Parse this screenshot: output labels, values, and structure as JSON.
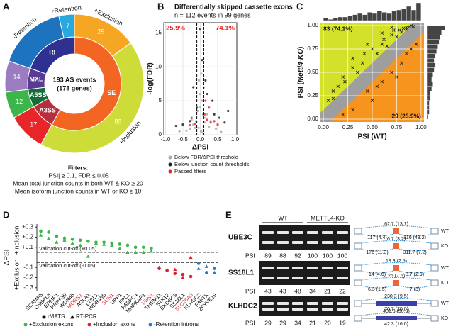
{
  "chart_data": [
    {
      "type": "sunburst",
      "panel_label": "A",
      "center_text": [
        "193 AS events",
        "(178 genes)"
      ],
      "inner": {
        "categories": [
          "SE",
          "A3SS",
          "A5SS",
          "MXE",
          "RI"
        ],
        "values": [
          112,
          17,
          12,
          14,
          38
        ],
        "colors": [
          "#f26522",
          "#b5303c",
          "#176b38",
          "#5a3b94",
          "#2e3192"
        ]
      },
      "outer": {
        "categories": [
          "+Exclusion",
          "+Inclusion",
          null,
          null,
          null,
          "-Retention",
          "+Retention"
        ],
        "values": [
          29,
          83,
          17,
          12,
          14,
          31,
          7
        ],
        "value_labels": [
          "29",
          "83",
          "17",
          "12",
          "14",
          null,
          "7"
        ],
        "colors": [
          "#f5a623",
          "#cddc39",
          "#e8262a",
          "#3cb54a",
          "#9b7cc0",
          "#1e73be",
          "#29a8e0"
        ]
      },
      "footnote": [
        "Filters:",
        "|PSI| ≥ 0.1, FDR ≤ 0.05",
        "Mean total junction counts in both WT & KO ≥ 20",
        "Mean isoform junction counts in WT or KO ≥ 10"
      ]
    },
    {
      "type": "volcano",
      "panel_label": "B",
      "title": "Differentially skipped cassette exons",
      "subtitle": "n = 112 events in 99 genes",
      "x_label": "ΔPSI",
      "y_label": "-log(FDR)",
      "xlim": [
        -1.05,
        1.05
      ],
      "ylim": [
        0,
        16.5
      ],
      "xticks": [
        {
          "value": -1,
          "label": "-1.0"
        },
        -0.5,
        {
          "value": 0,
          "label": "0.0"
        },
        0.5,
        {
          "value": 1,
          "label": "1.0"
        }
      ],
      "yticks": [
        0,
        5,
        10,
        15
      ],
      "grid": true,
      "vlines": [
        -0.1,
        0.1
      ],
      "hline": 1.3,
      "left_label": "25.9%",
      "right_label": "74.1%",
      "series": [
        {
          "name": "Below FDR/ΔPSI threshold",
          "color": "#aaaaaa",
          "x": [
            -0.05,
            0.02,
            -0.12,
            0.08,
            -0.2,
            0.15,
            -0.3,
            0.25,
            0.0,
            -0.02,
            0.05,
            -0.08,
            0.1,
            -0.15,
            0.3,
            -0.4,
            0.45,
            0.6,
            -0.6,
            0.03,
            -0.04,
            0.07,
            0.2,
            -0.25,
            0.12
          ],
          "values": [
            1,
            0.5,
            2,
            3,
            1.5,
            2.5,
            0.8,
            1.2,
            4,
            6,
            5,
            3.5,
            7,
            1,
            2,
            0.6,
            0.9,
            0.4,
            0.5,
            9,
            8,
            0.3,
            3,
            2.2,
            1.8
          ]
        },
        {
          "name": "Below junction count thresholds",
          "color": "#222222",
          "x": [
            -0.3,
            0.4,
            -0.5,
            0.2,
            0.55,
            -0.1,
            0.35,
            0.7,
            -0.7,
            0.15,
            -0.2,
            0.8,
            0.05,
            -0.02
          ],
          "values": [
            2,
            3,
            1.5,
            6,
            2.5,
            4,
            5,
            1.8,
            1.3,
            8,
            7,
            3.5,
            11,
            15.5
          ]
        },
        {
          "name": "Passed filters",
          "color": "#e8262a",
          "x": [
            -0.25,
            0.3,
            0.12,
            0.2,
            -0.15,
            0.5,
            0.15,
            -0.3,
            0.25,
            0.4
          ],
          "values": [
            2.5,
            1.8,
            3,
            2.2,
            1.6,
            1.5,
            5,
            1.4,
            4,
            2
          ]
        }
      ]
    },
    {
      "type": "scatter",
      "panel_label": "C",
      "x_label": "PSI (WT)",
      "y_label": [
        "PSI (",
        "Mettl4-KO",
        ")"
      ],
      "xlim": [
        -0.03,
        1.03
      ],
      "ylim": [
        -0.03,
        1.03
      ],
      "xticks": [
        {
          "value": 0,
          "label": "0.00"
        },
        0.25,
        {
          "value": 0.5,
          "label": "0.50"
        },
        0.75,
        {
          "value": 1,
          "label": "1.00"
        }
      ],
      "yticks": [
        {
          "value": 0,
          "label": "0.00"
        },
        0.25,
        {
          "value": 0.5,
          "label": "0.50"
        },
        0.75,
        {
          "value": 1,
          "label": "1.00"
        }
      ],
      "band": 0.1,
      "colors": {
        "above": "#d4e12a",
        "below": "#f7941d",
        "band": "#9e9e9e",
        "points": "#222222",
        "hist": "#444444"
      },
      "above_label": "83 (74.1%)",
      "below_label": "29 (25.9%)",
      "x": [
        0.05,
        0.1,
        0.15,
        0.2,
        0.22,
        0.3,
        0.35,
        0.4,
        0.42,
        0.5,
        0.55,
        0.6,
        0.62,
        0.65,
        0.7,
        0.72,
        0.75,
        0.78,
        0.8,
        0.82,
        0.85,
        0.88,
        0.9,
        0.1,
        0.3,
        0.45,
        0.6,
        0.7,
        0.85,
        0.92,
        0.2,
        0.3,
        0.45,
        0.5,
        0.55,
        0.6,
        0.7,
        0.75,
        0.8,
        0.85,
        0.9,
        0.95
      ],
      "values": [
        0.2,
        0.3,
        0.35,
        0.45,
        0.4,
        0.55,
        0.5,
        0.6,
        0.7,
        0.75,
        0.7,
        0.8,
        0.85,
        0.78,
        0.9,
        0.95,
        0.88,
        0.95,
        0.93,
        0.97,
        0.98,
        0.99,
        1.0,
        0.22,
        0.65,
        0.8,
        0.92,
        0.98,
        0.96,
        0.99,
        0.05,
        0.1,
        0.3,
        0.2,
        0.35,
        0.4,
        0.5,
        0.45,
        0.6,
        0.7,
        0.75,
        0.8
      ],
      "x_hist": {
        "bins": [
          0,
          0.05,
          0.1,
          0.15,
          0.2,
          0.25,
          0.3,
          0.35,
          0.4,
          0.45,
          0.5,
          0.55,
          0.6,
          0.65,
          0.7,
          0.75,
          0.8,
          0.85,
          0.9,
          0.95,
          1
        ],
        "counts": [
          2,
          1,
          2,
          3,
          3,
          4,
          5,
          6,
          5,
          7,
          6,
          8,
          7,
          6,
          8,
          9,
          10,
          12,
          9,
          15
        ]
      },
      "y_hist": {
        "bins": [
          0,
          0.05,
          0.1,
          0.15,
          0.2,
          0.25,
          0.3,
          0.35,
          0.4,
          0.45,
          0.5,
          0.55,
          0.6,
          0.65,
          0.7,
          0.75,
          0.8,
          0.85,
          0.9,
          0.95,
          1
        ],
        "counts": [
          1,
          2,
          2,
          2,
          3,
          3,
          4,
          5,
          4,
          5,
          6,
          7,
          6,
          7,
          8,
          9,
          10,
          11,
          12,
          15
        ]
      }
    },
    {
      "type": "dot",
      "panel_label": "D",
      "y_label": "ΔPSI",
      "direction_labels": [
        "+Inclusion",
        "+Exclusion"
      ],
      "ylim": [
        -0.33,
        0.33
      ],
      "yticks": [
        {
          "value": 0.3,
          "label": "+0.3"
        },
        {
          "value": 0.2,
          "label": "+0.2"
        },
        {
          "value": 0.1,
          "label": "+0.1"
        },
        -0.1,
        -0.2,
        -0.3
      ],
      "cutoffs": [
        {
          "value": 0.05,
          "label": "Validation cut-off (+0.05)"
        },
        {
          "value": -0.05,
          "label": "Validation cut-off (-0.05)"
        }
      ],
      "method_names": [
        "rMATS",
        "RT-PCR"
      ],
      "categories": [
        "SCAMP5",
        "OSBPL6",
        "ERMP1",
        "PRPF39",
        "WDR45",
        "MORN1",
        "ACLA1",
        "LTBL1",
        "WDR45B",
        "SUN1",
        "UPF1",
        "FPL1",
        "FABPC4",
        "MAPKAP1",
        "UBN1",
        "TMEM11",
        "STK12",
        "EXOSC9",
        "SS18L1",
        "SLC25A3",
        "KLHDC2",
        "FASTK",
        "ZFYVE19"
      ],
      "label_colors": [
        "#000000",
        "#000000",
        "#000000",
        "#000000",
        "#000000",
        "#e8262a",
        "#000000",
        "#000000",
        "#000000",
        "#e8262a",
        "#000000",
        "#000000",
        "#000000",
        "#000000",
        "#e8262a",
        "#000000",
        "#000000",
        "#000000",
        "#000000",
        "#e8262a",
        "#000000",
        "#000000",
        "#000000"
      ],
      "series": [
        {
          "name": "+Exclusion exons",
          "color": "#3cb54a",
          "values": [
            0.26,
            0.25,
            0.21,
            0.19,
            0.18,
            0.17,
            0.16,
            0.15,
            0.15,
            0.14,
            0.13,
            0.12,
            0.1,
            0.1,
            0.09,
            null,
            null,
            null,
            null,
            null,
            null,
            null,
            null
          ],
          "rtpcr": [
            0.22,
            0.19,
            0.15,
            0.17,
            0.14,
            0.12,
            0.01,
            0.14,
            0.13,
            0.12,
            0.09,
            0.05,
            0.05,
            0.05,
            0.06,
            null,
            null,
            null,
            null,
            null,
            null,
            null,
            null
          ]
        },
        {
          "name": "+Inclusion exons",
          "color": "#d7262f",
          "values": [
            null,
            null,
            null,
            null,
            null,
            null,
            null,
            null,
            null,
            null,
            null,
            null,
            null,
            null,
            null,
            -0.11,
            -0.13,
            -0.16,
            -0.17,
            -0.19,
            null,
            null,
            null
          ],
          "rtpcr": [
            null,
            null,
            null,
            null,
            null,
            null,
            null,
            null,
            null,
            null,
            null,
            null,
            null,
            null,
            null,
            -0.1,
            -0.12,
            -0.12,
            -0.2,
            0.0,
            null,
            null,
            null
          ]
        },
        {
          "name": "-Retention introns",
          "color": "#2a7bbf",
          "values": [
            null,
            null,
            null,
            null,
            null,
            null,
            null,
            null,
            null,
            null,
            null,
            null,
            null,
            null,
            null,
            null,
            null,
            null,
            null,
            null,
            -0.06,
            -0.15,
            -0.11
          ],
          "rtpcr": [
            null,
            null,
            null,
            null,
            null,
            null,
            null,
            null,
            null,
            null,
            null,
            null,
            null,
            null,
            null,
            null,
            null,
            null,
            null,
            null,
            -0.11,
            -0.09,
            -0.15
          ]
        }
      ]
    }
  ],
  "gel_figure": {
    "panel_label": "E",
    "groups": [
      "WT",
      "METTL4-KO"
    ],
    "psi_label": "PSI",
    "genes": [
      {
        "name": "UBE3C",
        "psi": [
          89,
          88,
          92,
          100,
          100,
          100
        ],
        "diagram": [
          {
            "condition": "WT",
            "top": "62.7 (13.1)",
            "left": "117 (4.4)",
            "right": "316 (43.2)"
          },
          {
            "condition": "KO",
            "top": "6.7 (3.2)",
            "left": "176 (11.3)",
            "right": "311.7 (7.2)"
          }
        ]
      },
      {
        "name": "SS18L1",
        "psi": [
          43,
          43,
          48,
          34,
          21,
          22
        ],
        "diagram": [
          {
            "condition": "WT",
            "top": "19.3 (2.5)",
            "left": "14 (4.6)",
            "right": "8.7 (2.9)"
          },
          {
            "condition": "KO",
            "top": "26 (7.6)",
            "left": "6.3 (1.5)",
            "right": "7 (3)"
          }
        ]
      },
      {
        "name": "KLHDC2",
        "psi": [
          29,
          29,
          34,
          21,
          20,
          19
        ],
        "diagram": [
          {
            "condition": "WT",
            "top": "230.3 (9.5)",
            "middle": "70.7 (20.0)"
          },
          {
            "condition": "KO",
            "top": "401.3 (50.9)",
            "middle": "42.3 (16.0)"
          }
        ]
      }
    ]
  }
}
